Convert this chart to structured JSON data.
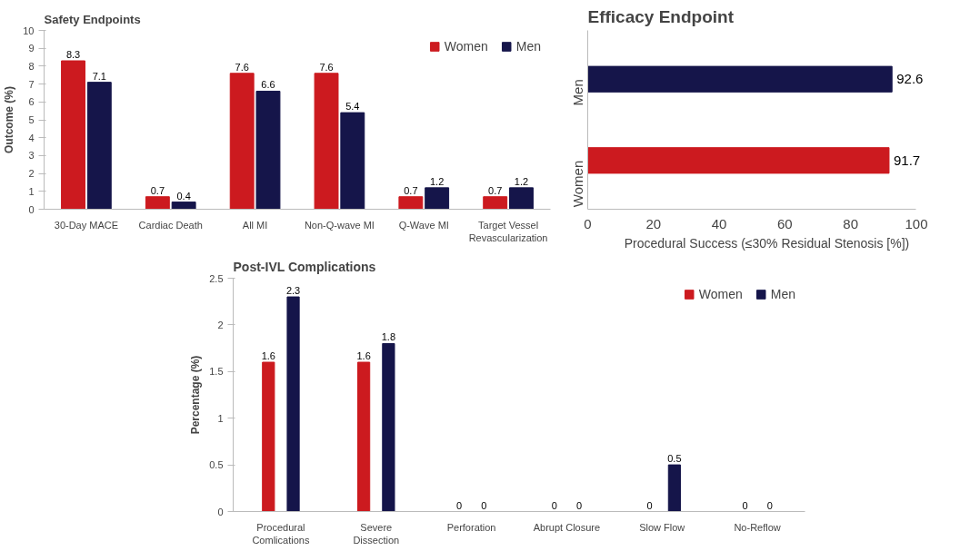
{
  "chart_data": [
    {
      "type": "bar",
      "title": "Safety Endpoints",
      "ylabel": "Outcome (%)",
      "categories": [
        "30-Day MACE",
        "Cardiac Death",
        "All MI",
        "Non-Q-wave MI",
        "Q-Wave MI",
        "Target Vessel Revascularization"
      ],
      "series": [
        {
          "name": "Women",
          "color": "#cc1a1f",
          "values": [
            8.3,
            0.7,
            7.6,
            7.6,
            0.7,
            0.7
          ]
        },
        {
          "name": "Men",
          "color": "#15154a",
          "values": [
            7.1,
            0.4,
            6.6,
            5.4,
            1.2,
            1.2
          ]
        }
      ],
      "ylim": [
        0,
        10
      ],
      "yticks": [
        0,
        1,
        2,
        3,
        4,
        5,
        6,
        7,
        8,
        9,
        10
      ],
      "data_labels": true,
      "legend": "top right",
      "grid": false
    },
    {
      "type": "bar",
      "title": "Efficacy Endpoint",
      "xlabel": "Procedural Success (≤30% Residual Stenosis [%])",
      "orientation": "horizontal",
      "categories": [
        "Men",
        "Women"
      ],
      "values": [
        92.6,
        91.7
      ],
      "colors": [
        "#15154a",
        "#cc1a1f"
      ],
      "xlim": [
        0,
        100
      ],
      "xticks": [
        0,
        20,
        40,
        60,
        80,
        100
      ],
      "data_labels": true,
      "grid": false
    },
    {
      "type": "bar",
      "title": "Post-IVL Complications",
      "ylabel": "Percentage (%)",
      "categories": [
        "Procedural Comlications",
        "Severe Dissection",
        "Perforation",
        "Abrupt Closure",
        "Slow Flow",
        "No-Reflow"
      ],
      "series": [
        {
          "name": "Women",
          "color": "#cc1a1f",
          "values": [
            1.6,
            1.6,
            0,
            0,
            0,
            0
          ]
        },
        {
          "name": "Men",
          "color": "#15154a",
          "values": [
            2.3,
            1.8,
            0,
            0,
            0.5,
            0
          ]
        }
      ],
      "ylim": [
        0,
        2.5
      ],
      "yticks": [
        0,
        0.5,
        1,
        1.5,
        2,
        2.5
      ],
      "data_labels": true,
      "legend": "top right",
      "grid": false
    }
  ]
}
